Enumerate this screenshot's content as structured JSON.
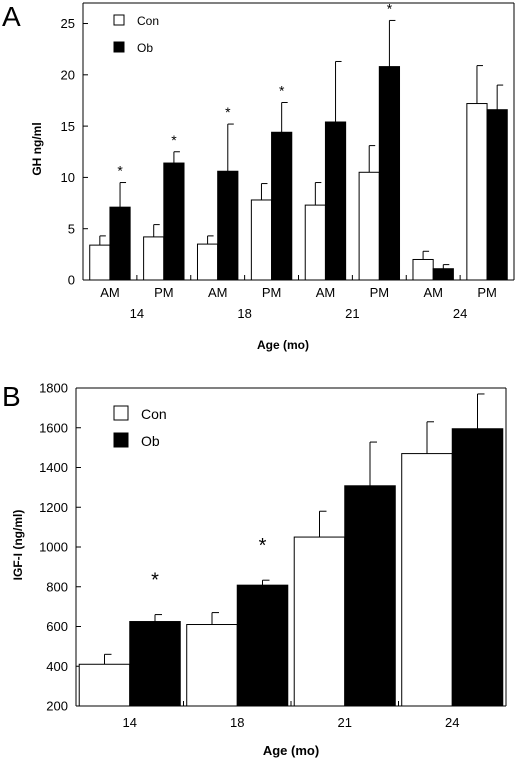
{
  "chart_data": [
    {
      "panel_label": "A",
      "type": "bar",
      "ylabel": "GH ng/ml",
      "xlabel": "Age (mo)",
      "ylim": [
        0,
        27
      ],
      "yticks": [
        0,
        5,
        10,
        15,
        20,
        25
      ],
      "categories": [
        "AM",
        "PM",
        "AM",
        "PM",
        "AM",
        "PM",
        "AM",
        "PM"
      ],
      "group_labels": [
        "14",
        "18",
        "21",
        "24"
      ],
      "legend": [
        "Con",
        "Ob"
      ],
      "legend_position": "top-left",
      "grid": false,
      "series": [
        {
          "name": "Con",
          "color": "#ffffff",
          "values": [
            3.4,
            4.2,
            3.5,
            7.8,
            7.3,
            10.5,
            2.0,
            17.2
          ],
          "errors": [
            0.9,
            1.2,
            0.8,
            1.6,
            2.2,
            2.6,
            0.8,
            3.7
          ]
        },
        {
          "name": "Ob",
          "color": "#000000",
          "values": [
            7.1,
            11.4,
            10.6,
            14.4,
            15.4,
            20.8,
            1.1,
            16.6
          ],
          "errors": [
            2.4,
            1.1,
            4.6,
            2.9,
            5.9,
            4.5,
            0.4,
            2.4
          ]
        }
      ],
      "significance": [
        "*",
        "*",
        "*",
        "*",
        "",
        "*",
        "",
        ""
      ]
    },
    {
      "panel_label": "B",
      "type": "bar",
      "ylabel": "IGF-I (ng/ml)",
      "xlabel": "Age (mo)",
      "ylim": [
        200,
        1800
      ],
      "yticks": [
        200,
        400,
        600,
        800,
        1000,
        1200,
        1400,
        1600,
        1800
      ],
      "categories": [
        "14",
        "18",
        "21",
        "24"
      ],
      "legend": [
        "Con",
        "Ob"
      ],
      "legend_position": "top-left",
      "grid": false,
      "series": [
        {
          "name": "Con",
          "color": "#ffffff",
          "values": [
            410,
            610,
            1050,
            1470
          ],
          "errors": [
            50,
            60,
            130,
            160
          ]
        },
        {
          "name": "Ob",
          "color": "#000000",
          "values": [
            625,
            808,
            1308,
            1595
          ],
          "errors": [
            35,
            25,
            220,
            175
          ]
        }
      ],
      "significance": [
        "*",
        "*",
        "",
        ""
      ]
    }
  ]
}
